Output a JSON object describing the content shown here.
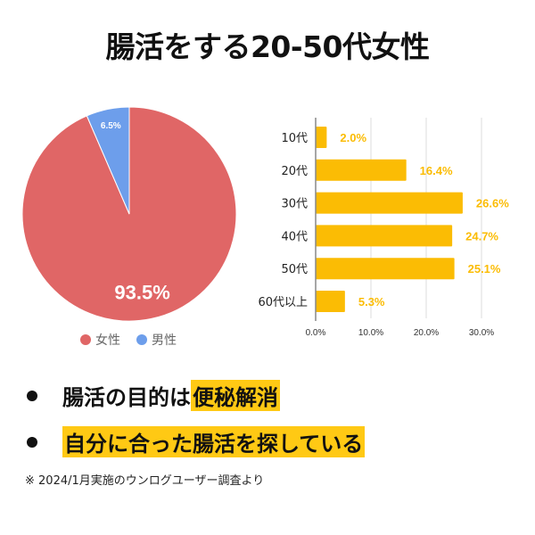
{
  "title": "腸活をする20-50代女性",
  "colors": {
    "female": "#E06666",
    "male": "#6D9EEB",
    "bar": "#FBBC04",
    "bar_label": "#FBBC04",
    "highlight": "#FFC914"
  },
  "chart_data": [
    {
      "type": "pie",
      "slices": [
        {
          "name": "女性",
          "value": 93.5,
          "label": "93.5%",
          "color": "#E06666"
        },
        {
          "name": "男性",
          "value": 6.5,
          "label": "6.5%",
          "color": "#6D9EEB"
        }
      ],
      "legend": [
        "女性",
        "男性"
      ],
      "legend_placement": "bottom"
    },
    {
      "type": "bar",
      "orientation": "horizontal",
      "categories": [
        "10代",
        "20代",
        "30代",
        "40代",
        "50代",
        "60代以上"
      ],
      "values": [
        2.0,
        16.4,
        26.6,
        24.7,
        25.1,
        5.3
      ],
      "data_labels": [
        "2.0%",
        "16.4%",
        "26.6%",
        "24.7%",
        "25.1%",
        "5.3%"
      ],
      "xlim": [
        0,
        30
      ],
      "xticks": [
        "0.0%",
        "10.0%",
        "20.0%",
        "30.0%"
      ],
      "grid": true
    }
  ],
  "bullets": [
    {
      "plain": "腸活の目的は",
      "highlight": "便秘解消"
    },
    {
      "plain": "",
      "highlight": "自分に合った腸活を探している"
    }
  ],
  "note": "※ 2024/1月実施のウンログユーザー調査より"
}
